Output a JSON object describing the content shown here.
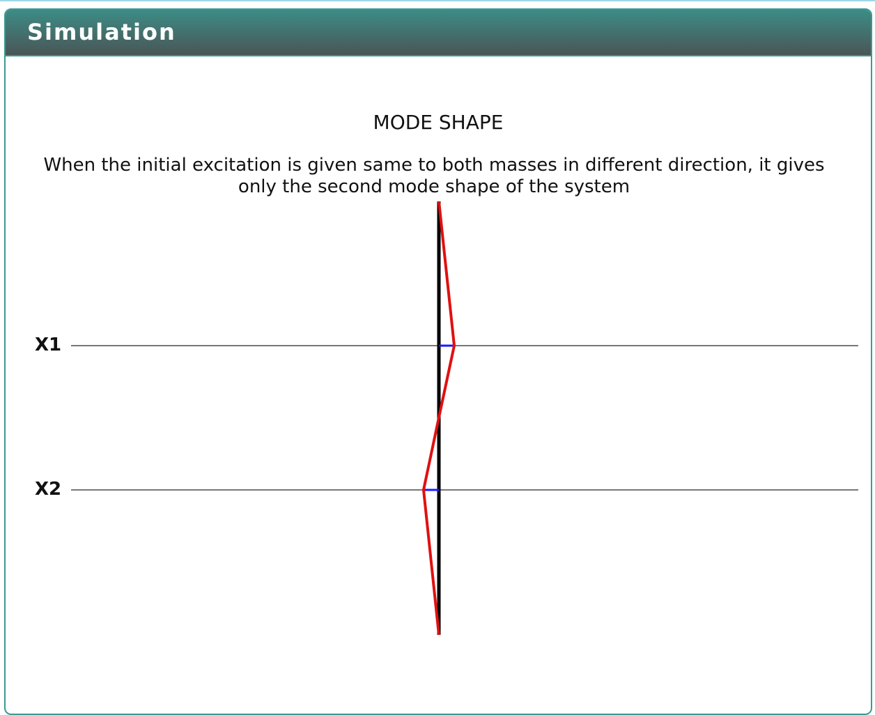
{
  "panel": {
    "title": "Simulation"
  },
  "simulation": {
    "heading": "MODE SHAPE",
    "description": "When the initial excitation is given same to both masses in different direction, it gives only the second mode shape of the system",
    "masses": [
      {
        "label": "X1",
        "displacement": 1
      },
      {
        "label": "X2",
        "displacement": -1
      }
    ]
  },
  "colors": {
    "header_top": "#3c8c86",
    "header_bottom": "#4a5656",
    "border": "#3a9a93",
    "axis": "#000000",
    "mode_shape": "#e01010",
    "displacement": "#1a1aff",
    "mass_line": "#777777"
  }
}
